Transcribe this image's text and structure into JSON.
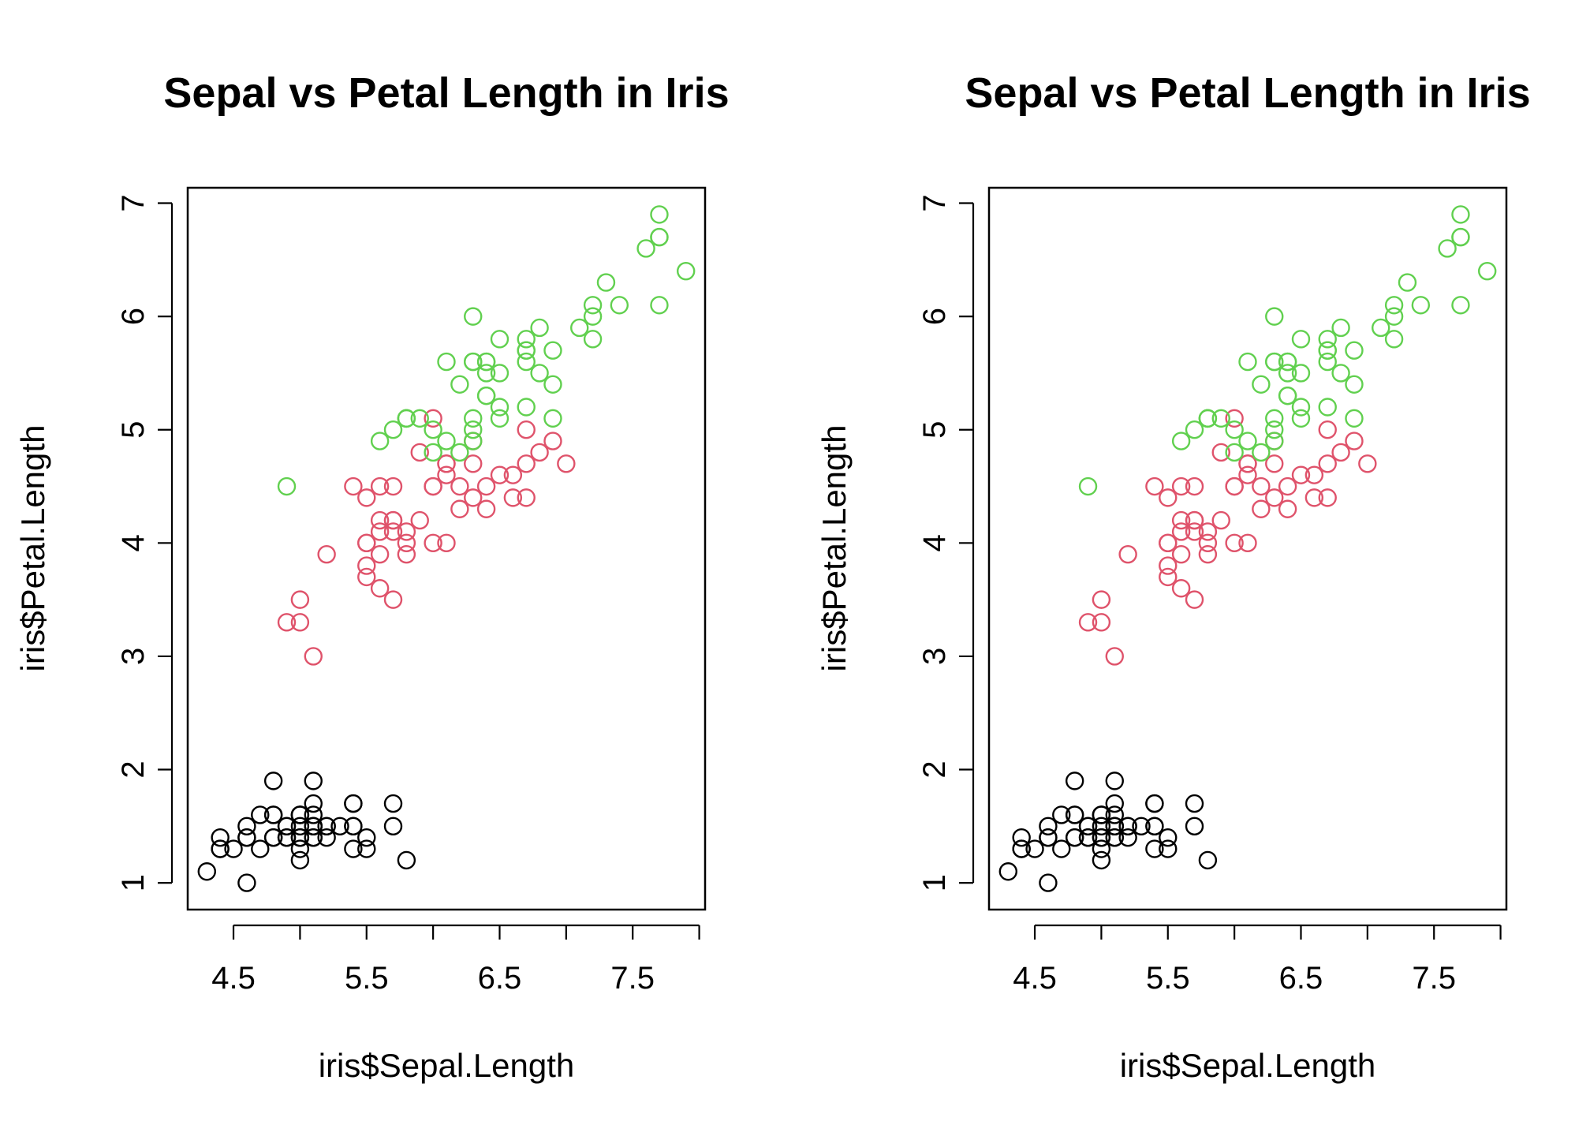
{
  "chart_data": [
    {
      "type": "scatter",
      "title": "Sepal vs Petal Length in Iris",
      "xlabel": "iris$Sepal.Length",
      "ylabel": "iris$Petal.Length",
      "xlim": [
        4.3,
        7.9
      ],
      "ylim": [
        1.0,
        6.9
      ],
      "xticks": [
        "4.5",
        "5.5",
        "6.5",
        "7.5"
      ],
      "yticks": [
        "1",
        "2",
        "3",
        "4",
        "5",
        "6",
        "7"
      ],
      "grid": false,
      "point_shape": "open-circle",
      "series": [
        {
          "color": "#000000",
          "x": [
            5.1,
            4.9,
            4.7,
            4.6,
            5.0,
            5.4,
            4.6,
            5.0,
            4.4,
            4.9,
            5.4,
            4.8,
            4.8,
            4.3,
            5.8,
            5.7,
            5.4,
            5.1,
            5.7,
            5.1,
            5.4,
            5.1,
            4.6,
            5.1,
            4.8,
            5.0,
            5.0,
            5.2,
            5.2,
            4.7,
            4.8,
            5.4,
            5.2,
            5.5,
            4.9,
            5.0,
            5.5,
            4.9,
            4.4,
            5.1,
            5.0,
            4.5,
            4.4,
            5.0,
            5.1,
            4.8,
            5.1,
            4.6,
            5.3,
            5.0
          ],
          "y": [
            1.4,
            1.4,
            1.3,
            1.5,
            1.4,
            1.7,
            1.4,
            1.5,
            1.4,
            1.5,
            1.5,
            1.6,
            1.4,
            1.1,
            1.2,
            1.5,
            1.3,
            1.4,
            1.7,
            1.5,
            1.7,
            1.5,
            1.0,
            1.7,
            1.9,
            1.6,
            1.6,
            1.5,
            1.4,
            1.6,
            1.6,
            1.5,
            1.5,
            1.4,
            1.5,
            1.2,
            1.3,
            1.4,
            1.3,
            1.5,
            1.3,
            1.3,
            1.3,
            1.6,
            1.9,
            1.4,
            1.6,
            1.4,
            1.5,
            1.4
          ]
        },
        {
          "color": "#DF536B",
          "x": [
            7.0,
            6.4,
            6.9,
            5.5,
            6.5,
            5.7,
            6.3,
            4.9,
            6.6,
            5.2,
            5.0,
            5.9,
            6.0,
            6.1,
            5.6,
            6.7,
            5.6,
            5.8,
            6.2,
            5.6,
            5.9,
            6.1,
            6.3,
            6.1,
            6.4,
            6.6,
            6.8,
            6.7,
            6.0,
            5.7,
            5.5,
            5.5,
            5.8,
            6.0,
            5.4,
            6.0,
            6.7,
            6.3,
            5.6,
            5.5,
            5.5,
            6.1,
            5.8,
            5.0,
            5.6,
            5.7,
            5.7,
            6.2,
            5.1,
            5.7
          ],
          "y": [
            4.7,
            4.5,
            4.9,
            4.0,
            4.6,
            4.5,
            4.7,
            3.3,
            4.6,
            3.9,
            3.5,
            4.2,
            4.0,
            4.7,
            3.6,
            4.4,
            4.5,
            4.1,
            4.5,
            3.9,
            4.8,
            4.0,
            4.9,
            4.7,
            4.3,
            4.4,
            4.8,
            5.0,
            4.5,
            3.5,
            3.8,
            3.7,
            3.9,
            5.1,
            4.5,
            4.5,
            4.7,
            4.4,
            4.1,
            4.0,
            4.4,
            4.6,
            4.0,
            3.3,
            4.2,
            4.2,
            4.2,
            4.3,
            3.0,
            4.1
          ]
        },
        {
          "color": "#61D04F",
          "x": [
            6.3,
            5.8,
            7.1,
            6.3,
            6.5,
            7.6,
            4.9,
            7.3,
            6.7,
            7.2,
            6.5,
            6.4,
            6.8,
            5.7,
            5.8,
            6.4,
            6.5,
            7.7,
            7.7,
            6.0,
            6.9,
            5.6,
            7.7,
            6.3,
            6.7,
            7.2,
            6.2,
            6.1,
            6.4,
            7.2,
            7.4,
            7.9,
            6.4,
            6.3,
            6.1,
            7.7,
            6.3,
            6.4,
            6.0,
            6.9,
            6.7,
            6.9,
            5.8,
            6.8,
            6.7,
            6.7,
            6.3,
            6.5,
            6.2,
            5.9
          ],
          "y": [
            6.0,
            5.1,
            5.9,
            5.6,
            5.8,
            6.6,
            4.5,
            6.3,
            5.8,
            6.1,
            5.1,
            5.3,
            5.5,
            5.0,
            5.1,
            5.3,
            5.5,
            6.7,
            6.9,
            5.0,
            5.7,
            4.9,
            6.7,
            4.9,
            5.7,
            6.0,
            4.8,
            4.9,
            5.6,
            5.8,
            6.1,
            6.4,
            5.6,
            5.1,
            5.6,
            6.1,
            5.6,
            5.5,
            4.8,
            5.4,
            5.6,
            5.1,
            5.1,
            5.9,
            5.7,
            5.2,
            5.0,
            5.2,
            5.4,
            5.1
          ]
        }
      ]
    },
    {
      "type": "scatter",
      "title": "Sepal vs Petal Length in Iris",
      "xlabel": "iris$Sepal.Length",
      "ylabel": "iris$Petal.Length",
      "xlim": [
        4.3,
        7.9
      ],
      "ylim": [
        1.0,
        6.9
      ],
      "xticks": [
        "4.5",
        "5.5",
        "6.5",
        "7.5"
      ],
      "yticks": [
        "1",
        "2",
        "3",
        "4",
        "5",
        "6",
        "7"
      ],
      "grid": false,
      "point_shape": "open-circle",
      "series": [
        {
          "color": "#000000",
          "x": [
            5.1,
            4.9,
            4.7,
            4.6,
            5.0,
            5.4,
            4.6,
            5.0,
            4.4,
            4.9,
            5.4,
            4.8,
            4.8,
            4.3,
            5.8,
            5.7,
            5.4,
            5.1,
            5.7,
            5.1,
            5.4,
            5.1,
            4.6,
            5.1,
            4.8,
            5.0,
            5.0,
            5.2,
            5.2,
            4.7,
            4.8,
            5.4,
            5.2,
            5.5,
            4.9,
            5.0,
            5.5,
            4.9,
            4.4,
            5.1,
            5.0,
            4.5,
            4.4,
            5.0,
            5.1,
            4.8,
            5.1,
            4.6,
            5.3,
            5.0
          ],
          "y": [
            1.4,
            1.4,
            1.3,
            1.5,
            1.4,
            1.7,
            1.4,
            1.5,
            1.4,
            1.5,
            1.5,
            1.6,
            1.4,
            1.1,
            1.2,
            1.5,
            1.3,
            1.4,
            1.7,
            1.5,
            1.7,
            1.5,
            1.0,
            1.7,
            1.9,
            1.6,
            1.6,
            1.5,
            1.4,
            1.6,
            1.6,
            1.5,
            1.5,
            1.4,
            1.5,
            1.2,
            1.3,
            1.4,
            1.3,
            1.5,
            1.3,
            1.3,
            1.3,
            1.6,
            1.9,
            1.4,
            1.6,
            1.4,
            1.5,
            1.4
          ]
        },
        {
          "color": "#DF536B",
          "x": [
            7.0,
            6.4,
            6.9,
            5.5,
            6.5,
            5.7,
            6.3,
            4.9,
            6.6,
            5.2,
            5.0,
            5.9,
            6.0,
            6.1,
            5.6,
            6.7,
            5.6,
            5.8,
            6.2,
            5.6,
            5.9,
            6.1,
            6.3,
            6.1,
            6.4,
            6.6,
            6.8,
            6.7,
            6.0,
            5.7,
            5.5,
            5.5,
            5.8,
            6.0,
            5.4,
            6.0,
            6.7,
            6.3,
            5.6,
            5.5,
            5.5,
            6.1,
            5.8,
            5.0,
            5.6,
            5.7,
            5.7,
            6.2,
            5.1,
            5.7
          ],
          "y": [
            4.7,
            4.5,
            4.9,
            4.0,
            4.6,
            4.5,
            4.7,
            3.3,
            4.6,
            3.9,
            3.5,
            4.2,
            4.0,
            4.7,
            3.6,
            4.4,
            4.5,
            4.1,
            4.5,
            3.9,
            4.8,
            4.0,
            4.9,
            4.7,
            4.3,
            4.4,
            4.8,
            5.0,
            4.5,
            3.5,
            3.8,
            3.7,
            3.9,
            5.1,
            4.5,
            4.5,
            4.7,
            4.4,
            4.1,
            4.0,
            4.4,
            4.6,
            4.0,
            3.3,
            4.2,
            4.2,
            4.2,
            4.3,
            3.0,
            4.1
          ]
        },
        {
          "color": "#61D04F",
          "x": [
            6.3,
            5.8,
            7.1,
            6.3,
            6.5,
            7.6,
            4.9,
            7.3,
            6.7,
            7.2,
            6.5,
            6.4,
            6.8,
            5.7,
            5.8,
            6.4,
            6.5,
            7.7,
            7.7,
            6.0,
            6.9,
            5.6,
            7.7,
            6.3,
            6.7,
            7.2,
            6.2,
            6.1,
            6.4,
            7.2,
            7.4,
            7.9,
            6.4,
            6.3,
            6.1,
            7.7,
            6.3,
            6.4,
            6.0,
            6.9,
            6.7,
            6.9,
            5.8,
            6.8,
            6.7,
            6.7,
            6.3,
            6.5,
            6.2,
            5.9
          ],
          "y": [
            6.0,
            5.1,
            5.9,
            5.6,
            5.8,
            6.6,
            4.5,
            6.3,
            5.8,
            6.1,
            5.1,
            5.3,
            5.5,
            5.0,
            5.1,
            5.3,
            5.5,
            6.7,
            6.9,
            5.0,
            5.7,
            4.9,
            6.7,
            4.9,
            5.7,
            6.0,
            4.8,
            4.9,
            5.6,
            5.8,
            6.1,
            6.4,
            5.6,
            5.1,
            5.6,
            6.1,
            5.6,
            5.5,
            4.8,
            5.4,
            5.6,
            5.1,
            5.1,
            5.9,
            5.7,
            5.2,
            5.0,
            5.2,
            5.4,
            5.1
          ]
        }
      ]
    }
  ]
}
